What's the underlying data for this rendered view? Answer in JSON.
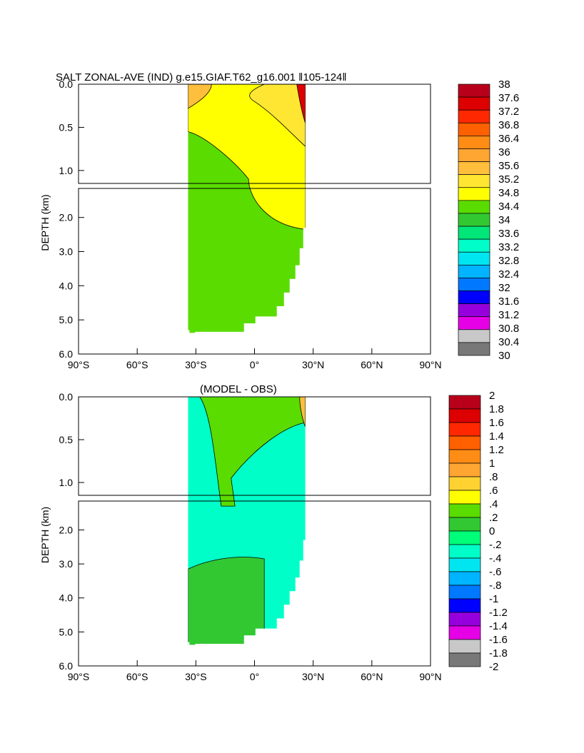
{
  "figure": {
    "title": "SALT ZONAL-AVE (IND) g.e15.GIAF.T62_g16.001 ‖105-124‖",
    "subtitle": "(MODEL - OBS)"
  },
  "chart_data": [
    {
      "type": "heatmap",
      "title": "SALT ZONAL-AVE (IND) g.e15.GIAF.T62_g16.001 ‖105-124‖",
      "ylabel": "DEPTH (km)",
      "xlabel": "",
      "x_ticks": [
        "90°S",
        "60°S",
        "30°S",
        "0°",
        "30°N",
        "60°N",
        "90°N"
      ],
      "y_ticks_upper": [
        "0.0",
        "0.5",
        "1.0"
      ],
      "y_ticks_lower": [
        "2.0",
        "3.0",
        "4.0",
        "5.0",
        "6.0"
      ],
      "xlim": [
        -90,
        90
      ],
      "ylim": [
        6,
        0
      ],
      "data_extent_lat": [
        -34,
        26
      ],
      "colorbar": {
        "labels": [
          "38",
          "37.6",
          "37.2",
          "36.8",
          "36.4",
          "36",
          "35.6",
          "35.2",
          "34.8",
          "34.4",
          "34",
          "33.6",
          "33.2",
          "32.8",
          "32.4",
          "32",
          "31.6",
          "31.2",
          "30.8",
          "30.4",
          "30"
        ],
        "colors": [
          "#b8001a",
          "#dc0000",
          "#ff2800",
          "#ff6000",
          "#ff8c14",
          "#ffa532",
          "#ffbe3c",
          "#ffe632",
          "#ffff00",
          "#5adc00",
          "#32c832",
          "#00e678",
          "#00ffc8",
          "#00e6f0",
          "#00b4ff",
          "#0078ff",
          "#0000ff",
          "#9600dc",
          "#e600e6",
          "#c8c8c8",
          "#787878"
        ]
      },
      "regions": [
        {
          "name": "deep",
          "value": 34.6,
          "color": "#5adc00"
        },
        {
          "name": "north_upper",
          "value": 35.0,
          "color": "#ffff00"
        },
        {
          "name": "mid_upper",
          "value": 35.4,
          "color": "#ffe632"
        },
        {
          "name": "surface_south",
          "value": 35.8,
          "color": "#ffbe3c"
        },
        {
          "name": "red_sea",
          "value": 38.0,
          "color": "#dc0000"
        }
      ]
    },
    {
      "type": "heatmap",
      "title": "(MODEL - OBS)",
      "ylabel": "DEPTH (km)",
      "xlabel": "",
      "x_ticks": [
        "90°S",
        "60°S",
        "30°S",
        "0°",
        "30°N",
        "60°N",
        "90°N"
      ],
      "y_ticks_upper": [
        "0.0",
        "0.5",
        "1.0"
      ],
      "y_ticks_lower": [
        "2.0",
        "3.0",
        "4.0",
        "5.0",
        "6.0"
      ],
      "xlim": [
        -90,
        90
      ],
      "ylim": [
        6,
        0
      ],
      "data_extent_lat": [
        -34,
        26
      ],
      "colorbar": {
        "labels": [
          "2",
          "1.8",
          "1.6",
          "1.4",
          "1.2",
          "1",
          ".8",
          ".6",
          ".4",
          ".2",
          "0",
          "-.2",
          "-.4",
          "-.6",
          "-.8",
          "-1",
          "-1.2",
          "-1.4",
          "-1.6",
          "-1.8",
          "-2"
        ],
        "colors": [
          "#b8001a",
          "#dc0000",
          "#ff2800",
          "#ff6000",
          "#ff8c14",
          "#ffa532",
          "#ffd232",
          "#ffff00",
          "#5adc00",
          "#32c832",
          "#00ff78",
          "#00ffc8",
          "#00e6f0",
          "#00b4ff",
          "#0078ff",
          "#0000ff",
          "#9600dc",
          "#e600e6",
          "#c8c8c8",
          "#787878"
        ]
      },
      "regions": [
        {
          "name": "deep",
          "value": -0.1,
          "color": "#00ffc8"
        },
        {
          "name": "bottom_positive",
          "value": 0.1,
          "color": "#32c832"
        },
        {
          "name": "surface_positive",
          "value": 0.3,
          "color": "#5adc00"
        },
        {
          "name": "arabian_sea",
          "value": 0.7,
          "color": "#ffbe3c"
        }
      ]
    }
  ]
}
